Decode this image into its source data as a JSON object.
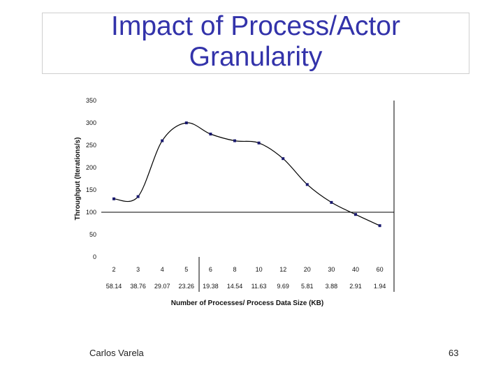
{
  "slide": {
    "title_line1": "Impact of Process/Actor",
    "title_line2": "Granularity",
    "author": "Carlos Varela",
    "page_number": "63"
  },
  "chart_data": {
    "type": "line",
    "title": "",
    "ylabel": "Throughput (Iterations/s)",
    "xlabel": "Number of Processes/ Process Data Size (KB)",
    "ylim": [
      0,
      350
    ],
    "yticks": [
      0,
      50,
      100,
      150,
      200,
      250,
      300,
      350
    ],
    "categories": [
      "2",
      "3",
      "4",
      "5",
      "6",
      "8",
      "10",
      "12",
      "20",
      "30",
      "40",
      "60"
    ],
    "data_sizes": [
      "58.14",
      "38.76",
      "29.07",
      "23.26",
      "19.38",
      "14.54",
      "11.63",
      "9.69",
      "5.81",
      "3.88",
      "2.91",
      "1.94"
    ],
    "series": [
      {
        "values": [
          130,
          135,
          260,
          300,
          275,
          260,
          255,
          220,
          162,
          122,
          95,
          70
        ]
      }
    ],
    "reference_line": 100,
    "grid": false,
    "legend": "none",
    "colors": {
      "line": "#000000",
      "marker": "#1a1a6e"
    }
  }
}
